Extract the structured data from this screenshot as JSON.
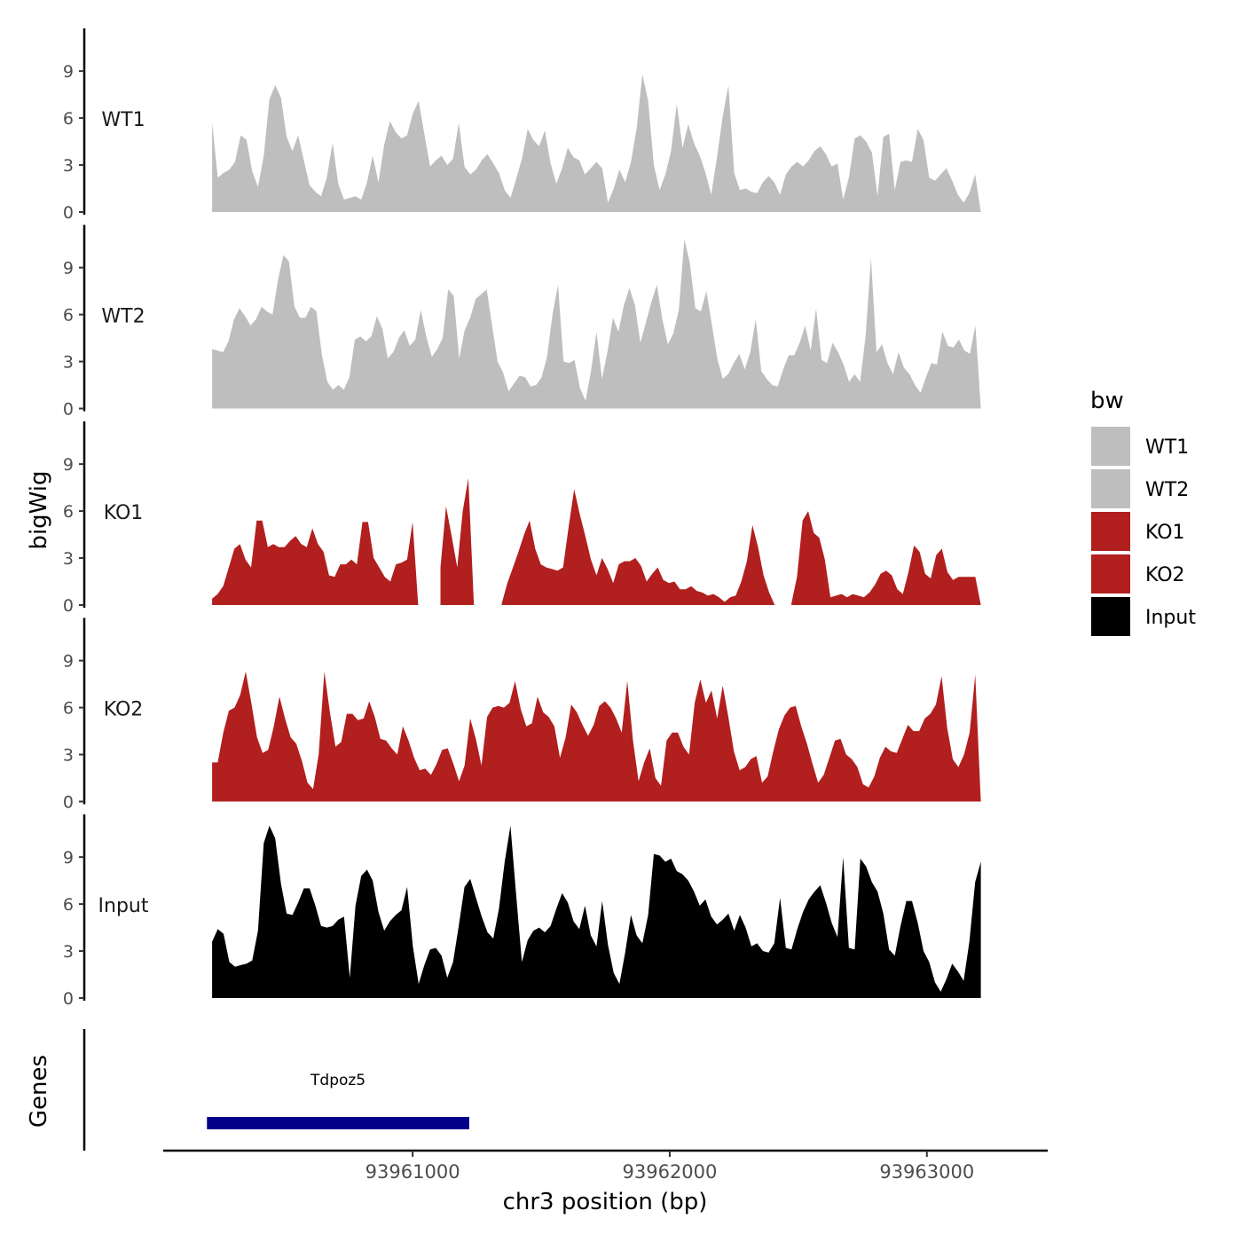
{
  "chart_data": {
    "type": "area",
    "ylabel": "bigWig",
    "xlabel": "chr3 position (bp)",
    "xlim": [
      93960030,
      93963470
    ],
    "ylim": [
      0,
      11.5
    ],
    "ytick_values": [
      0,
      3,
      6,
      9
    ],
    "ytick_labels": [
      "0",
      "3",
      "6",
      "9"
    ],
    "xtick_values": [
      93961000,
      93962000,
      93963000
    ],
    "xtick_labels": [
      "93961000",
      "93962000",
      "93963000"
    ],
    "x_start": 93960220,
    "x_end": 93963210,
    "grid": false,
    "legend": {
      "title": "bw",
      "position": "right",
      "entries": [
        {
          "label": "WT1",
          "color": "#bebebe"
        },
        {
          "label": "WT2",
          "color": "#bebebe"
        },
        {
          "label": "KO1",
          "color": "#b21f1f"
        },
        {
          "label": "KO2",
          "color": "#b21f1f"
        },
        {
          "label": "Input",
          "color": "#000000"
        }
      ]
    },
    "series": [
      {
        "name": "WT1",
        "color": "#bebebe",
        "values": [
          5.7,
          2.2,
          2.5,
          2.7,
          3.2,
          4.9,
          4.6,
          2.6,
          1.6,
          3.6,
          7.2,
          8.1,
          7.3,
          4.8,
          3.9,
          4.9,
          3.3,
          1.7,
          1.3,
          1.0,
          2.2,
          4.4,
          1.8,
          0.8,
          0.9,
          1.0,
          0.8,
          1.9,
          3.6,
          1.9,
          4.3,
          5.8,
          5.1,
          4.7,
          4.9,
          6.3,
          7.1,
          5.0,
          2.9,
          3.3,
          3.6,
          3.0,
          3.4,
          5.7,
          2.9,
          2.4,
          2.7,
          3.3,
          3.7,
          3.1,
          2.5,
          1.4,
          0.9,
          2.1,
          3.4,
          5.3,
          4.6,
          4.2,
          5.2,
          3.1,
          1.8,
          2.8,
          4.1,
          3.5,
          3.3,
          2.4,
          2.8,
          3.2,
          2.8,
          0.6,
          1.5,
          2.7,
          1.9,
          3.2,
          5.3,
          8.8,
          7.1,
          3.0,
          1.4,
          2.4,
          3.9,
          6.9,
          4.1,
          5.6,
          4.4,
          3.6,
          2.5,
          1.1,
          3.5,
          6.1,
          8.1,
          2.5,
          1.4,
          1.5,
          1.3,
          1.2,
          1.9,
          2.3,
          1.9,
          1.1,
          2.4,
          2.9,
          3.2,
          2.9,
          3.3,
          3.9,
          4.2,
          3.7,
          2.9,
          3.1,
          0.8,
          2.2,
          4.7,
          4.9,
          4.5,
          3.8,
          1.0,
          4.8,
          5.0,
          1.4,
          3.2,
          3.3,
          3.2,
          5.3,
          4.6,
          2.2,
          2.0,
          2.4,
          2.8,
          2.0,
          1.1,
          0.6,
          1.2,
          2.4,
          0.0
        ]
      },
      {
        "name": "WT2",
        "color": "#bebebe",
        "values": [
          3.8,
          3.7,
          3.6,
          4.3,
          5.7,
          6.4,
          5.9,
          5.3,
          5.7,
          6.5,
          6.2,
          6.0,
          8.2,
          9.8,
          9.4,
          6.5,
          5.8,
          5.8,
          6.5,
          6.2,
          3.4,
          1.7,
          1.2,
          1.5,
          1.2,
          2.0,
          4.4,
          4.6,
          4.3,
          4.6,
          5.9,
          5.1,
          3.2,
          3.6,
          4.5,
          5.0,
          4.0,
          4.4,
          6.3,
          4.6,
          3.3,
          3.8,
          4.5,
          7.6,
          7.2,
          3.2,
          5.0,
          5.8,
          7.0,
          7.3,
          7.6,
          5.3,
          3.0,
          2.3,
          1.1,
          1.6,
          2.1,
          2.0,
          1.4,
          1.5,
          2.0,
          3.3,
          6.0,
          7.9,
          3.0,
          2.9,
          3.1,
          1.3,
          0.5,
          2.4,
          4.9,
          1.9,
          3.6,
          5.8,
          4.9,
          6.6,
          7.7,
          6.6,
          4.2,
          5.5,
          6.8,
          7.9,
          5.7,
          4.1,
          4.8,
          6.3,
          10.8,
          9.3,
          6.4,
          6.2,
          7.5,
          5.4,
          3.2,
          1.9,
          2.2,
          2.9,
          3.5,
          2.5,
          3.6,
          5.7,
          2.4,
          1.9,
          1.5,
          1.4,
          2.5,
          3.4,
          3.4,
          4.2,
          5.3,
          3.7,
          6.4,
          3.1,
          2.9,
          4.2,
          3.6,
          2.8,
          1.7,
          2.2,
          1.7,
          4.6,
          9.6,
          3.6,
          4.1,
          2.9,
          2.2,
          3.6,
          2.6,
          2.2,
          1.5,
          1.0,
          2.0,
          2.9,
          2.8,
          4.9,
          4.0,
          3.9,
          4.4,
          3.7,
          3.5,
          5.3,
          0.0
        ]
      },
      {
        "name": "KO1",
        "color": "#b21f1f",
        "values": [
          0.4,
          0.7,
          1.2,
          2.4,
          3.6,
          3.9,
          2.9,
          2.4,
          5.4,
          5.4,
          3.7,
          3.9,
          3.7,
          3.7,
          4.1,
          4.4,
          3.9,
          3.7,
          4.9,
          3.9,
          3.4,
          1.9,
          1.8,
          2.6,
          2.6,
          2.9,
          2.6,
          5.3,
          5.3,
          3.0,
          2.4,
          1.8,
          1.5,
          2.6,
          2.7,
          2.9,
          5.3,
          0.0,
          null,
          null,
          null,
          2.4,
          6.3,
          4.4,
          2.4,
          6.0,
          8.1,
          0.0,
          null,
          null,
          null,
          null,
          0.1,
          1.4,
          2.4,
          3.4,
          4.5,
          5.4,
          3.6,
          2.6,
          2.4,
          2.3,
          2.2,
          2.4,
          5.0,
          7.4,
          5.8,
          4.4,
          2.9,
          1.9,
          3.0,
          2.3,
          1.4,
          2.6,
          2.8,
          2.8,
          3.0,
          2.5,
          1.5,
          2.0,
          2.4,
          1.6,
          1.4,
          1.5,
          1.0,
          1.0,
          1.2,
          0.9,
          0.8,
          0.6,
          0.7,
          0.5,
          0.2,
          0.5,
          0.6,
          1.5,
          2.8,
          5.1,
          3.7,
          1.9,
          0.8,
          0.0,
          null,
          null,
          0.1,
          1.8,
          5.4,
          6.0,
          4.6,
          4.3,
          2.9,
          0.5,
          0.6,
          0.7,
          0.5,
          0.7,
          0.6,
          0.5,
          0.8,
          1.3,
          2.0,
          2.2,
          1.9,
          1.0,
          0.7,
          2.1,
          3.8,
          3.4,
          2.0,
          1.7,
          3.2,
          3.6,
          2.1,
          1.6,
          1.8,
          1.8,
          1.8,
          1.8,
          0.0
        ]
      },
      {
        "name": "KO2",
        "color": "#b21f1f",
        "values": [
          2.5,
          2.5,
          4.4,
          5.8,
          6.0,
          6.8,
          8.3,
          6.3,
          4.1,
          3.1,
          3.3,
          4.8,
          6.7,
          5.3,
          4.1,
          3.7,
          2.6,
          1.2,
          0.8,
          3.0,
          8.3,
          5.7,
          3.5,
          3.8,
          5.6,
          5.6,
          5.2,
          5.3,
          6.4,
          5.4,
          4.0,
          3.9,
          3.4,
          3.0,
          4.8,
          3.9,
          2.8,
          2.0,
          2.1,
          1.7,
          2.4,
          3.3,
          3.4,
          2.4,
          1.3,
          2.3,
          5.3,
          4.0,
          2.3,
          5.4,
          6.0,
          6.1,
          6.0,
          6.3,
          7.7,
          5.9,
          4.8,
          5.0,
          6.7,
          5.7,
          5.4,
          4.8,
          2.8,
          4.1,
          6.2,
          5.7,
          4.9,
          4.2,
          4.9,
          6.1,
          6.4,
          6.0,
          5.3,
          4.4,
          7.7,
          3.9,
          1.3,
          2.5,
          3.4,
          1.5,
          1.0,
          3.9,
          4.4,
          4.4,
          3.5,
          3.0,
          6.3,
          7.8,
          6.3,
          7.1,
          5.3,
          7.4,
          5.4,
          3.2,
          2.0,
          2.2,
          2.7,
          2.9,
          1.2,
          1.6,
          3.2,
          4.6,
          5.5,
          6.0,
          6.1,
          4.8,
          3.7,
          2.4,
          1.2,
          1.7,
          2.8,
          3.9,
          4.0,
          3.0,
          2.7,
          2.2,
          1.1,
          0.9,
          1.6,
          2.8,
          3.5,
          3.2,
          3.1,
          4.0,
          4.9,
          4.5,
          4.5,
          5.3,
          5.6,
          6.2,
          8.0,
          4.7,
          2.7,
          2.2,
          3.0,
          4.4,
          8.1,
          0.0
        ]
      },
      {
        "name": "Input",
        "color": "#000000",
        "values": [
          3.6,
          4.4,
          4.1,
          2.3,
          2.0,
          2.1,
          2.2,
          2.4,
          4.3,
          9.9,
          11.0,
          10.2,
          7.3,
          5.4,
          5.3,
          6.1,
          7.0,
          7.0,
          5.9,
          4.6,
          4.5,
          4.6,
          5.0,
          5.2,
          1.3,
          5.9,
          7.8,
          8.2,
          7.5,
          5.5,
          4.3,
          4.9,
          5.3,
          5.6,
          7.1,
          3.3,
          0.9,
          2.1,
          3.1,
          3.2,
          2.7,
          1.3,
          2.3,
          4.6,
          7.1,
          7.6,
          6.4,
          5.2,
          4.2,
          3.8,
          5.7,
          8.7,
          11.0,
          6.6,
          2.3,
          3.7,
          4.3,
          4.5,
          4.2,
          4.6,
          5.7,
          6.7,
          6.1,
          4.9,
          4.4,
          5.9,
          4.0,
          3.3,
          6.2,
          3.4,
          1.6,
          0.9,
          2.9,
          5.3,
          4.0,
          3.5,
          5.3,
          9.2,
          9.1,
          8.7,
          8.9,
          8.1,
          7.9,
          7.5,
          6.8,
          5.9,
          6.3,
          5.2,
          4.7,
          5.0,
          5.4,
          4.3,
          5.3,
          4.5,
          3.3,
          3.5,
          3.0,
          2.9,
          3.5,
          6.4,
          3.2,
          3.1,
          4.4,
          5.5,
          6.3,
          6.8,
          7.2,
          6.1,
          4.8,
          3.9,
          9.0,
          3.2,
          3.1,
          8.9,
          8.4,
          7.4,
          6.8,
          5.4,
          3.1,
          2.7,
          4.6,
          6.2,
          6.2,
          4.8,
          3.0,
          2.3,
          1.0,
          0.4,
          1.2,
          2.2,
          1.7,
          1.1,
          3.6,
          7.4,
          8.7
        ]
      }
    ],
    "genes_label": "Genes",
    "genes": [
      {
        "name": "Tdpoz5",
        "start": 93960200,
        "end": 93961220,
        "color": "#00008b"
      }
    ]
  }
}
